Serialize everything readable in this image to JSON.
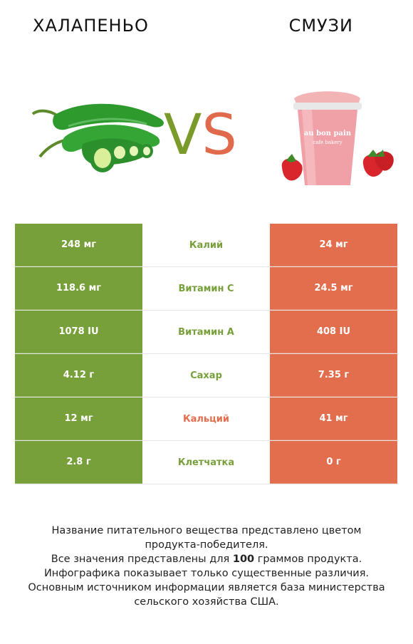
{
  "header": {
    "left_title": "ХАЛАПЕНЬО",
    "right_title": "СМУЗИ",
    "vs_v": "V",
    "vs_s": "S"
  },
  "images": {
    "cup_brand": "au bon pain",
    "cup_sub": "cafe bakery"
  },
  "colors": {
    "left_accent": "#78a03a",
    "right_accent": "#e36e4e"
  },
  "rows": [
    {
      "left": "248 мг",
      "label": "Калий",
      "right": "24 мг",
      "winner": "left"
    },
    {
      "left": "118.6 мг",
      "label": "Витамин C",
      "right": "24.5 мг",
      "winner": "left"
    },
    {
      "left": "1078 IU",
      "label": "Витамин A",
      "right": "408 IU",
      "winner": "left"
    },
    {
      "left": "4.12 г",
      "label": "Сахар",
      "right": "7.35 г",
      "winner": "left"
    },
    {
      "left": "12 мг",
      "label": "Кальций",
      "right": "41 мг",
      "winner": "right"
    },
    {
      "left": "2.8 г",
      "label": "Клетчатка",
      "right": "0 г",
      "winner": "left"
    }
  ],
  "footer": {
    "line1": "Название питательного вещества представлено цветом",
    "line2": "продукта-победителя.",
    "line3_pre": "Все значения представлены для ",
    "line3_bold": "100",
    "line3_post": " граммов продукта.",
    "line4": "Инфографика показывает только существенные различия.",
    "line5": "Основным источником информации является база министерства",
    "line6": "сельского хозяйства США."
  }
}
